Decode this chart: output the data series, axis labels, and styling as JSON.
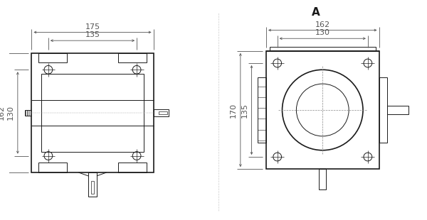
{
  "bg_color": "#ffffff",
  "line_color": "#1a1a1a",
  "dim_color": "#555555",
  "thin_lw": 0.7,
  "thick_lw": 1.2,
  "dim_lw": 0.6,
  "view_A_label": "A",
  "dims_left": {
    "width_outer": "175",
    "width_inner": "135",
    "height_outer": "162",
    "height_inner": "130"
  },
  "dims_right": {
    "width_outer": "162",
    "width_inner": "130",
    "height_outer": "170",
    "height_inner": "135"
  },
  "fontsize_dim": 8,
  "fontsize_label": 9
}
